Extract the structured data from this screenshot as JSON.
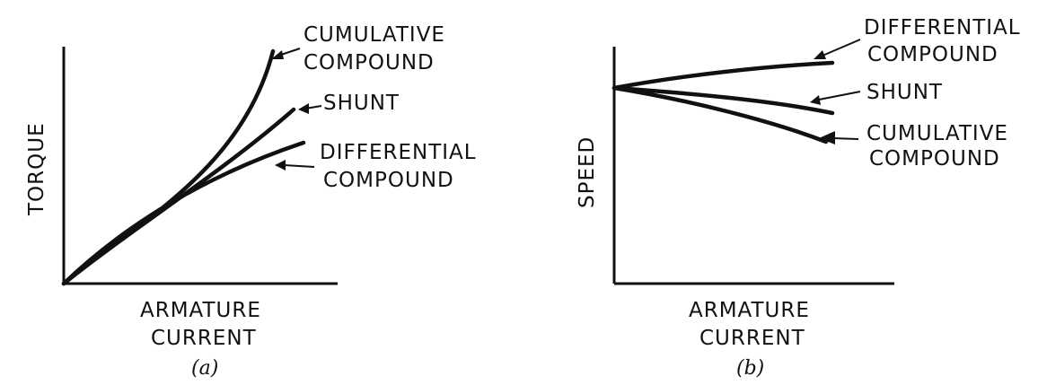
{
  "panel_a": {
    "caption": "(a)",
    "y_axis_label": "TORQUE",
    "x_axis_label_line1": "ARMATURE",
    "x_axis_label_line2": "CURRENT",
    "curves": [
      {
        "id": "cumulative",
        "label_line1": "CUMULATIVE",
        "label_line2": "COMPOUND"
      },
      {
        "id": "shunt",
        "label_line1": "SHUNT",
        "label_line2": ""
      },
      {
        "id": "differential",
        "label_line1": "DIFFERENTIAL",
        "label_line2": "COMPOUND"
      }
    ]
  },
  "panel_b": {
    "caption": "(b)",
    "y_axis_label": "SPEED",
    "x_axis_label_line1": "ARMATURE",
    "x_axis_label_line2": "CURRENT",
    "curves": [
      {
        "id": "differential",
        "label_line1": "DIFFERENTIAL",
        "label_line2": "COMPOUND"
      },
      {
        "id": "shunt",
        "label_line1": "SHUNT",
        "label_line2": ""
      },
      {
        "id": "cumulative",
        "label_line1": "CUMULATIVE",
        "label_line2": "COMPOUND"
      }
    ]
  }
}
